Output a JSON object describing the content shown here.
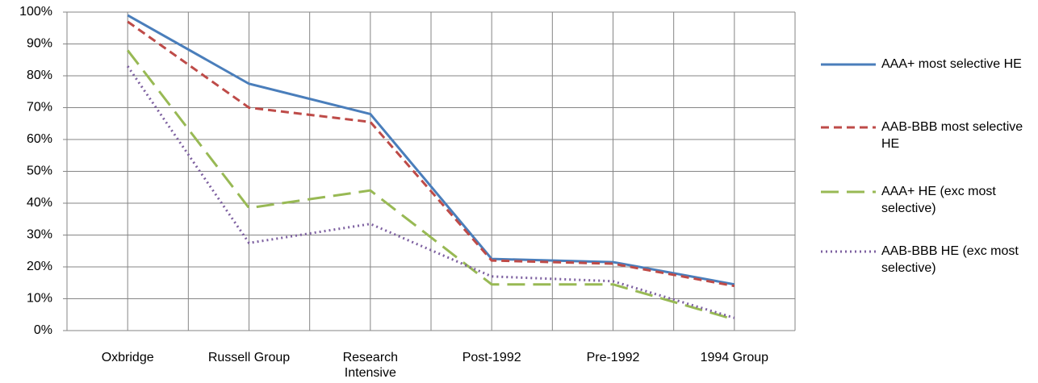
{
  "chart_data": {
    "type": "line",
    "categories": [
      "Oxbridge",
      "Russell Group",
      "Research Intensive",
      "Post-1992",
      "Pre-1992",
      "1994 Group"
    ],
    "series": [
      {
        "name": "AAA+ most selective HE",
        "color": "#4a7ebb",
        "style": "solid",
        "values": [
          99,
          77.5,
          68,
          22.5,
          21.5,
          14.5
        ]
      },
      {
        "name": "AAB-BBB most selective HE",
        "color": "#be4b48",
        "style": "dash",
        "values": [
          97,
          70,
          65.5,
          22,
          21,
          14
        ]
      },
      {
        "name": "AAA+ HE (exc most selective)",
        "color": "#98b954",
        "style": "longdash",
        "values": [
          88,
          38.5,
          44,
          14.5,
          14.5,
          3.5
        ]
      },
      {
        "name": "AAB-BBB HE (exc most selective)",
        "color": "#7d60a0",
        "style": "dot",
        "values": [
          83,
          27.5,
          33.5,
          17,
          15.5,
          4
        ]
      }
    ],
    "ylim": [
      0,
      100
    ],
    "yticks": [
      {
        "value": 0,
        "label": "0%"
      },
      {
        "value": 10,
        "label": "10%"
      },
      {
        "value": 20,
        "label": "20%"
      },
      {
        "value": 30,
        "label": "30%"
      },
      {
        "value": 40,
        "label": "40%"
      },
      {
        "value": 50,
        "label": "50%"
      },
      {
        "value": 60,
        "label": "60%"
      },
      {
        "value": 70,
        "label": "70%"
      },
      {
        "value": 80,
        "label": "80%"
      },
      {
        "value": 90,
        "label": "90%"
      },
      {
        "value": 100,
        "label": "100%"
      }
    ],
    "grid": true,
    "legend": "right"
  }
}
